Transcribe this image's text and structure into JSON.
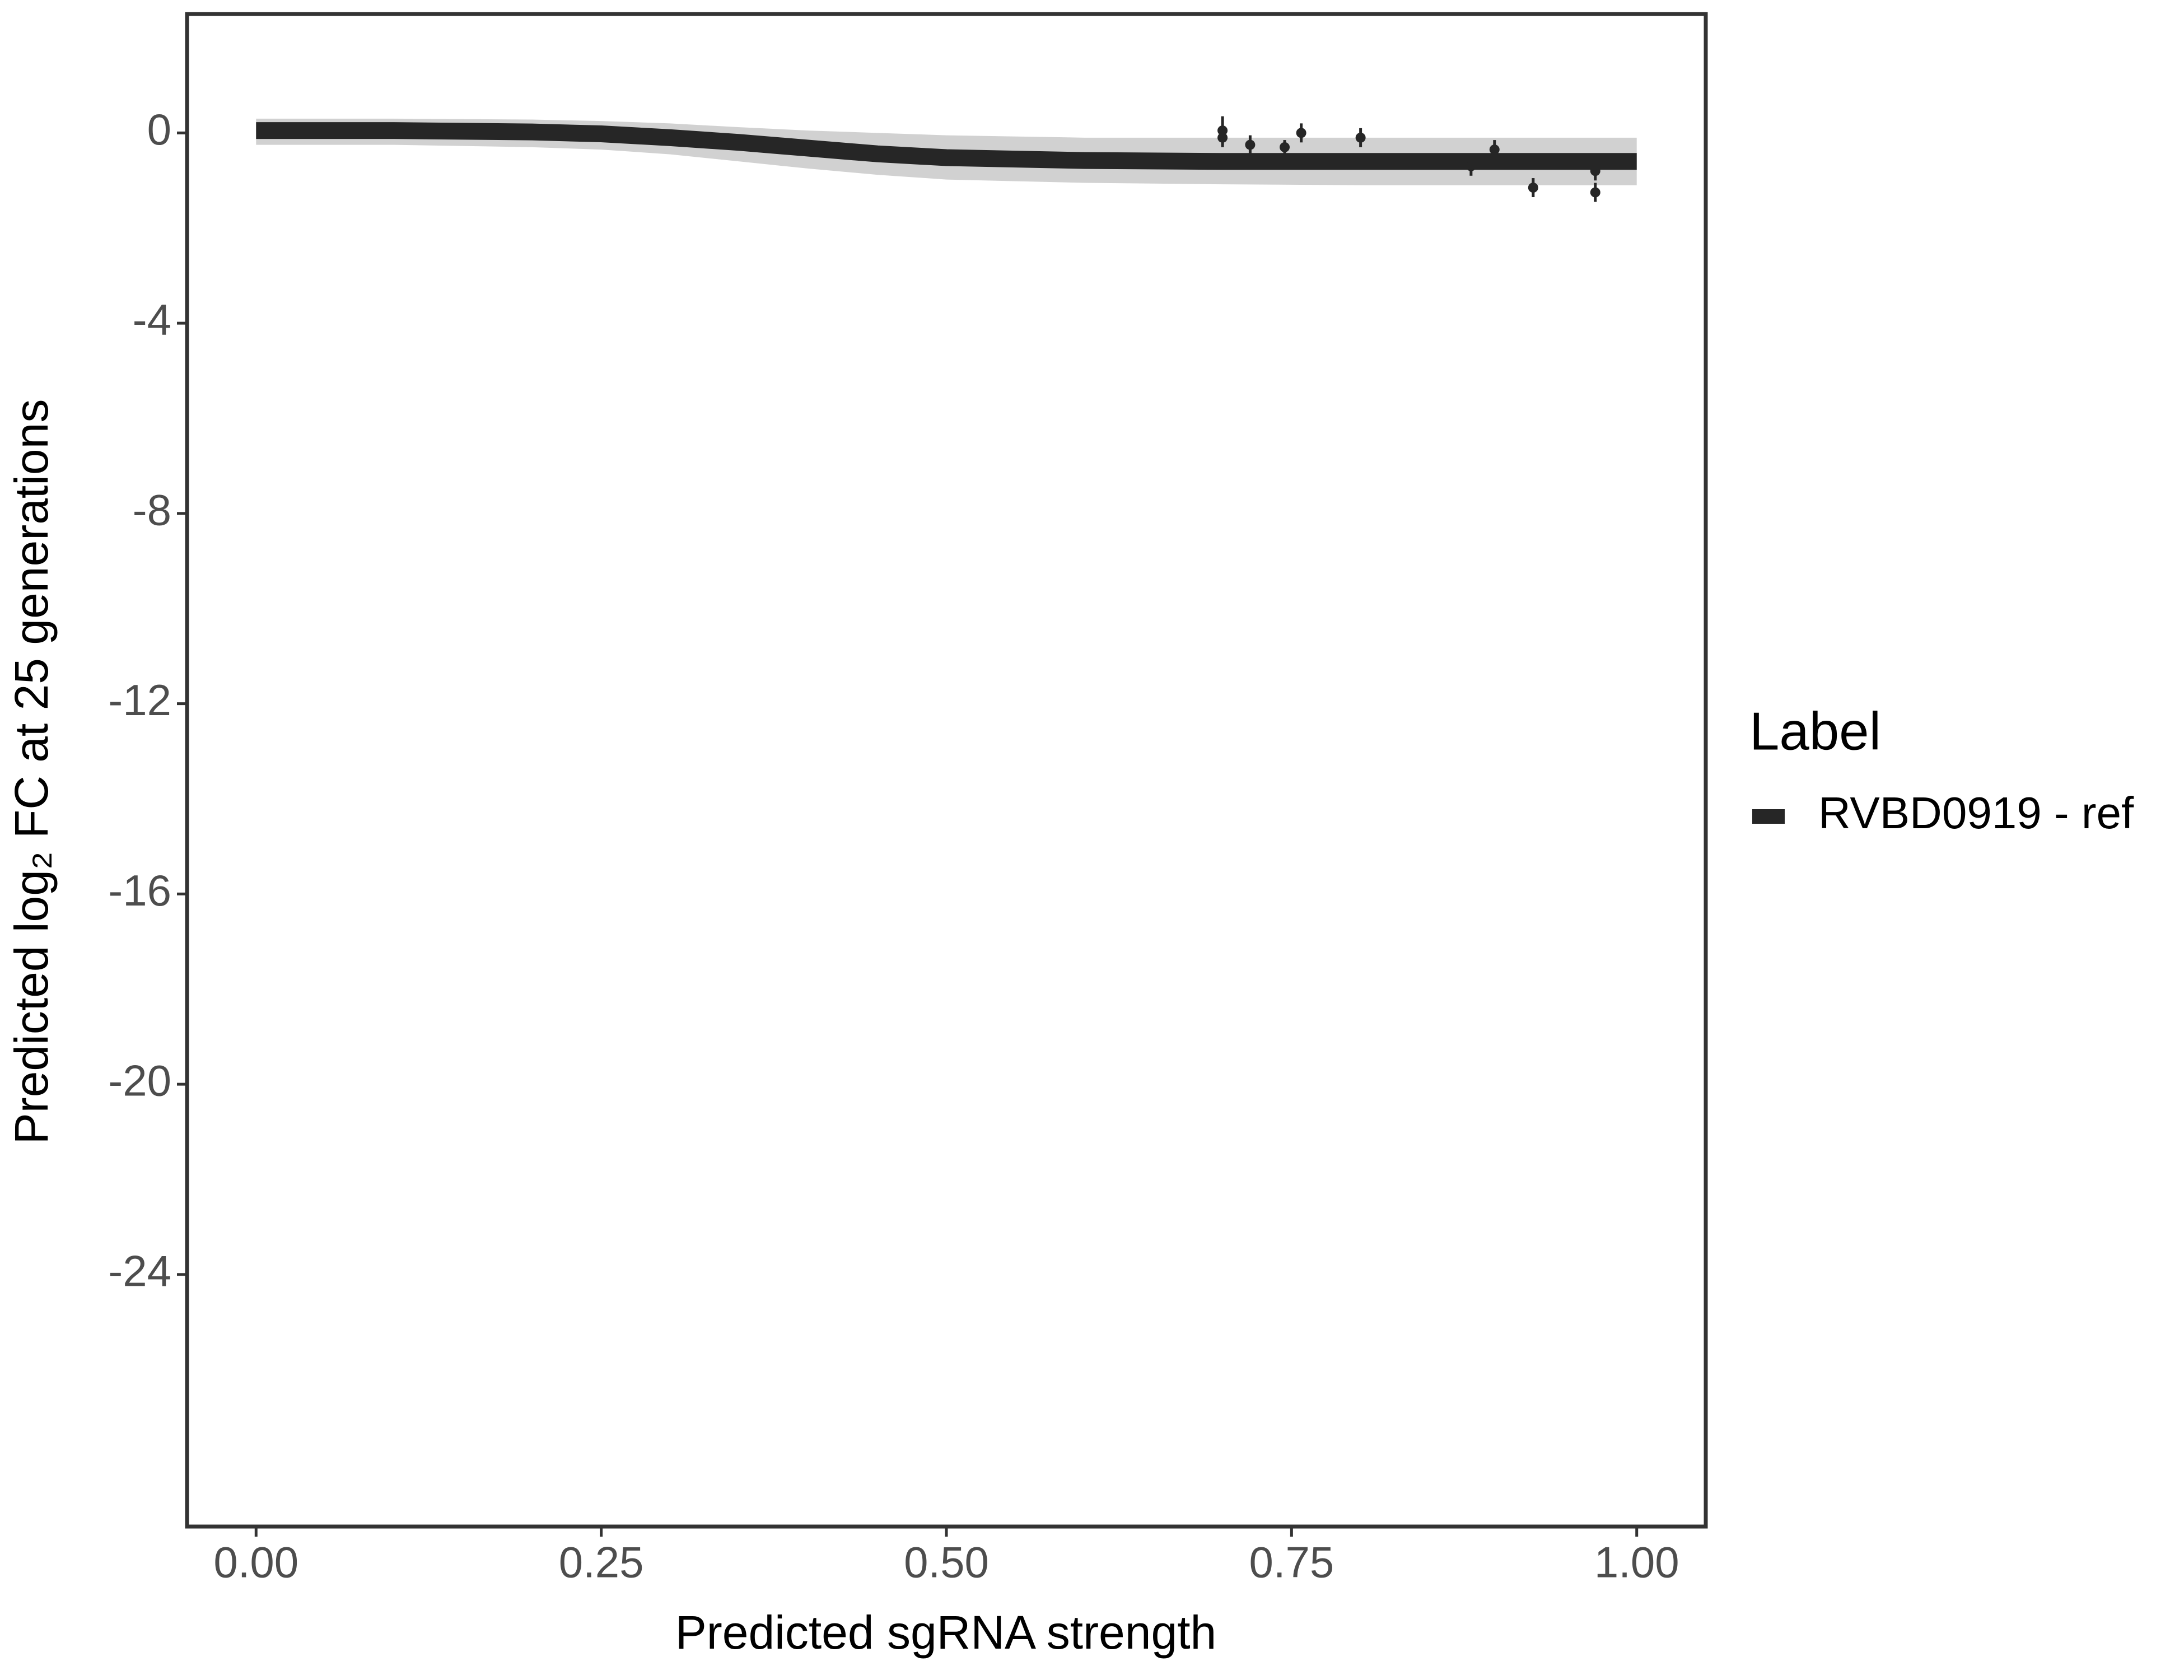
{
  "chart_data": {
    "type": "line",
    "x_label": "Predicted sgRNA strength",
    "y_label": "Predicted  log₂ FC at 25 generations",
    "legend_title": "Label",
    "legend_position": "right",
    "xlim": [
      -0.05,
      1.05
    ],
    "ylim": [
      -29.3,
      2.5
    ],
    "xticks": [
      {
        "value": 0,
        "label": "0.00"
      },
      {
        "value": 0.25,
        "label": "0.25"
      },
      {
        "value": 0.5,
        "label": "0.50"
      },
      {
        "value": 0.75,
        "label": "0.75"
      },
      {
        "value": 1,
        "label": "1.00"
      }
    ],
    "yticks": [
      0,
      -4,
      -8,
      -12,
      -16,
      -20,
      -24
    ],
    "series": [
      {
        "name": "RVBD0919 - ref",
        "color": "#262626",
        "band_color": "#bdbdbd",
        "x": [
          0,
          0.1,
          0.2,
          0.25,
          0.3,
          0.35,
          0.4,
          0.45,
          0.5,
          0.6,
          0.7,
          0.8,
          0.9,
          1.0
        ],
        "values": [
          0.05,
          0.05,
          0.02,
          -0.02,
          -0.1,
          -0.2,
          -0.32,
          -0.44,
          -0.52,
          -0.58,
          -0.6,
          -0.6,
          -0.6,
          -0.6
        ],
        "band_upper": [
          0.3,
          0.3,
          0.28,
          0.25,
          0.2,
          0.12,
          0.05,
          0.0,
          -0.05,
          -0.1,
          -0.1,
          -0.1,
          -0.1,
          -0.1
        ],
        "band_lower": [
          -0.25,
          -0.25,
          -0.3,
          -0.35,
          -0.45,
          -0.6,
          -0.75,
          -0.88,
          -0.98,
          -1.05,
          -1.08,
          -1.1,
          -1.1,
          -1.1
        ]
      }
    ],
    "points": {
      "color": "#262626",
      "x": [
        0.7,
        0.7,
        0.72,
        0.745,
        0.757,
        0.8,
        0.88,
        0.897,
        0.925,
        0.97,
        0.97
      ],
      "values": [
        0.05,
        -0.1,
        -0.25,
        -0.3,
        0.0,
        -0.1,
        -0.7,
        -0.35,
        -1.15,
        -0.8,
        -1.25
      ],
      "errors": [
        0.3,
        0.2,
        0.2,
        0.15,
        0.2,
        0.2,
        0.2,
        0.2,
        0.2,
        0.2,
        0.2
      ]
    }
  }
}
